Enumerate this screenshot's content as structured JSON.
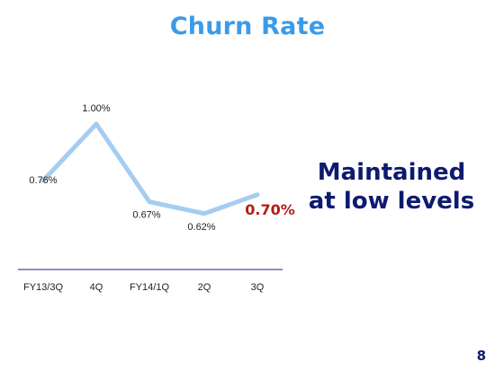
{
  "title": "Churn Rate",
  "message": {
    "line1": "Maintained",
    "line2": "at low levels"
  },
  "page_number": "8",
  "colors": {
    "title": "#3c9be8",
    "line": "#a6cdf0",
    "highlight": "#b01e14",
    "message": "#0d1b6e",
    "axis": "#1a237e"
  },
  "chart_data": {
    "type": "line",
    "categories": [
      "FY13/3Q",
      "4Q",
      "FY14/1Q",
      "2Q",
      "3Q"
    ],
    "values": [
      0.76,
      1.0,
      0.67,
      0.62,
      0.7
    ],
    "data_labels": [
      "0.76%",
      "1.00%",
      "0.67%",
      "0.62%",
      "0.70%"
    ],
    "highlight_index": 4,
    "title": "Churn Rate",
    "xlabel": "",
    "ylabel": "",
    "ylim": [
      0.5,
      1.05
    ],
    "grid": false,
    "legend": "none"
  }
}
